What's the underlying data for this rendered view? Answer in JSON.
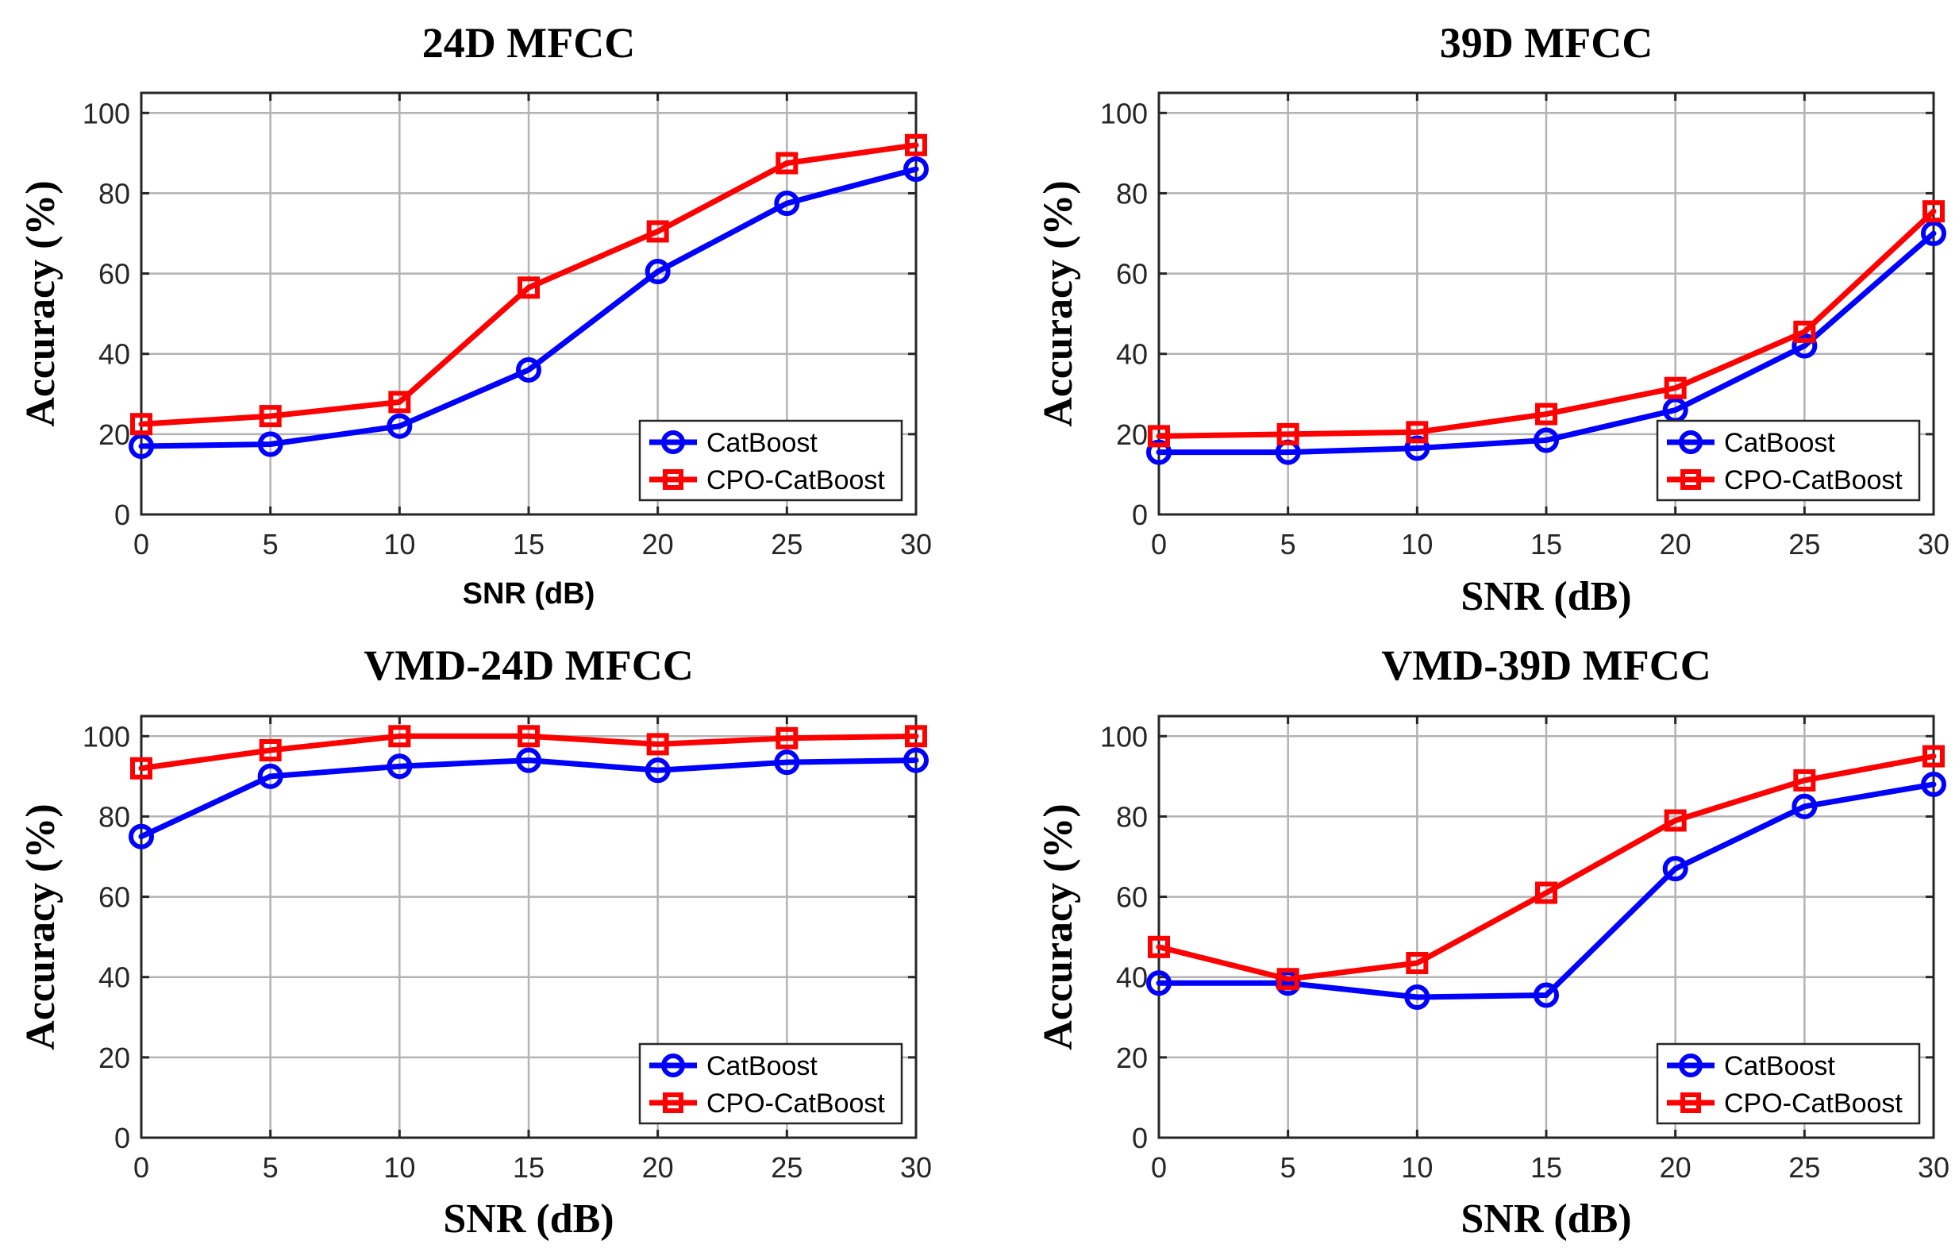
{
  "chart_data": [
    {
      "type": "line",
      "title": "24D MFCC",
      "xlabel": "SNR (dB)",
      "xlabel_style": "sans",
      "ylabel": "Accuracy (%)",
      "x": [
        0,
        5,
        10,
        15,
        20,
        25,
        30
      ],
      "xlim": [
        0,
        30
      ],
      "ylim": [
        0,
        105
      ],
      "xticks": [
        0,
        5,
        10,
        15,
        20,
        25,
        30
      ],
      "yticks": [
        0,
        20,
        40,
        60,
        80,
        100
      ],
      "grid": true,
      "legend": "bottom-right",
      "series": [
        {
          "name": "CatBoost",
          "color": "#0000ff",
          "marker": "circle",
          "values": [
            17,
            17.5,
            22,
            36,
            60.5,
            77.5,
            86
          ]
        },
        {
          "name": "CPO-CatBoost",
          "color": "#ff0000",
          "marker": "square",
          "values": [
            22.5,
            24.5,
            28,
            56.5,
            70.5,
            87.5,
            92
          ]
        }
      ]
    },
    {
      "type": "line",
      "title": "39D MFCC",
      "xlabel": "SNR (dB)",
      "xlabel_style": "serif",
      "ylabel": "Accuracy (%)",
      "x": [
        0,
        5,
        10,
        15,
        20,
        25,
        30
      ],
      "xlim": [
        0,
        30
      ],
      "ylim": [
        0,
        105
      ],
      "xticks": [
        0,
        5,
        10,
        15,
        20,
        25,
        30
      ],
      "yticks": [
        0,
        20,
        40,
        60,
        80,
        100
      ],
      "grid": true,
      "legend": "bottom-right",
      "series": [
        {
          "name": "CatBoost",
          "color": "#0000ff",
          "marker": "circle",
          "values": [
            15.5,
            15.5,
            16.5,
            18.5,
            26,
            42,
            70
          ]
        },
        {
          "name": "CPO-CatBoost",
          "color": "#ff0000",
          "marker": "square",
          "values": [
            19.5,
            20,
            20.5,
            25,
            31.5,
            45.5,
            75.5
          ]
        }
      ]
    },
    {
      "type": "line",
      "title": "VMD-24D MFCC",
      "xlabel": "SNR (dB)",
      "xlabel_style": "serif",
      "ylabel": "Accuracy (%)",
      "x": [
        0,
        5,
        10,
        15,
        20,
        25,
        30
      ],
      "xlim": [
        0,
        30
      ],
      "ylim": [
        0,
        105
      ],
      "xticks": [
        0,
        5,
        10,
        15,
        20,
        25,
        30
      ],
      "yticks": [
        0,
        20,
        40,
        60,
        80,
        100
      ],
      "grid": true,
      "legend": "bottom-right",
      "series": [
        {
          "name": "CatBoost",
          "color": "#0000ff",
          "marker": "circle",
          "values": [
            75,
            90,
            92.5,
            94,
            91.5,
            93.5,
            94
          ]
        },
        {
          "name": "CPO-CatBoost",
          "color": "#ff0000",
          "marker": "square",
          "values": [
            92,
            96.5,
            100,
            100,
            98,
            99.5,
            100
          ]
        }
      ]
    },
    {
      "type": "line",
      "title": "VMD-39D MFCC",
      "xlabel": "SNR (dB)",
      "xlabel_style": "serif",
      "ylabel": "Accuracy (%)",
      "x": [
        0,
        5,
        10,
        15,
        20,
        25,
        30
      ],
      "xlim": [
        0,
        30
      ],
      "ylim": [
        0,
        105
      ],
      "xticks": [
        0,
        5,
        10,
        15,
        20,
        25,
        30
      ],
      "yticks": [
        0,
        20,
        40,
        60,
        80,
        100
      ],
      "grid": true,
      "legend": "bottom-right",
      "series": [
        {
          "name": "CatBoost",
          "color": "#0000ff",
          "marker": "circle",
          "values": [
            38.5,
            38.5,
            35,
            35.5,
            67,
            82.5,
            88
          ]
        },
        {
          "name": "CPO-CatBoost",
          "color": "#ff0000",
          "marker": "square",
          "values": [
            47.5,
            39.5,
            43.5,
            61,
            79,
            89,
            95
          ]
        }
      ]
    }
  ]
}
